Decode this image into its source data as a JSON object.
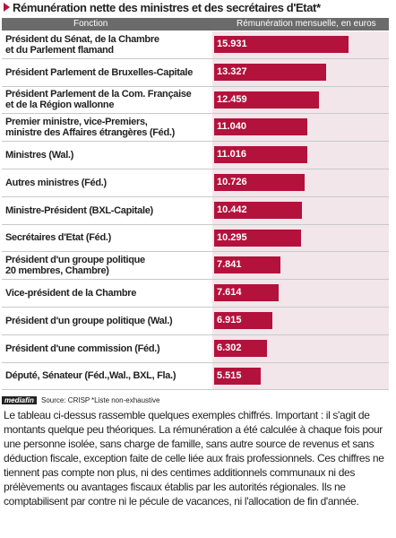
{
  "chart_data": {
    "type": "bar",
    "orientation": "horizontal",
    "title": "Rémunération nette des ministres et des secrétaires d'Etat*",
    "column_labels": [
      "Fonction",
      "Rémunération mensuelle, en euros"
    ],
    "categories": [
      "Président du Sénat, de la Chambre\net du Parlement flamand",
      "Président Parlement de Bruxelles-Capitale",
      "Président  Parlement de la Com. Française\net de la Région wallonne",
      "Premier ministre, vice-Premiers,\nministre des Affaires étrangères (Féd.)",
      "Ministres (Wal.)",
      "Autres ministres (Féd.)",
      "Ministre-Président (BXL-Capitale)",
      "Secrétaires d'Etat (Féd.)",
      "Président d'un groupe politique\n20 membres, Chambre)",
      "Vice-président de la Chambre",
      "Président d'un groupe politique (Wal.)",
      "Président d'une commission (Féd.)",
      "Député, Sénateur (Féd.,Wal., BXL, Fla.)"
    ],
    "values": [
      15931,
      13327,
      12459,
      11040,
      11016,
      10726,
      10442,
      10295,
      7841,
      7614,
      6915,
      6302,
      5515
    ],
    "value_labels": [
      "15.931",
      "13.327",
      "12.459",
      "11.040",
      "11.016",
      "10.726",
      "10.442",
      "10.295",
      "7.841",
      "7.614",
      "6.915",
      "6.302",
      "5.515"
    ],
    "color": "#b3123c",
    "logo": "mediafin",
    "source": "Source: CRISP",
    "note": "*Liste non-exhaustive",
    "paragraph": "Le tableau ci-dessus rassemble quelques exemples chiffrés. Important : il s'agit de montants quelque peu théoriques. La rémunération a été calculée à chaque fois pour une personne isolée, sans charge de famille, sans autre source de revenus et sans déduction fiscale, exception faite de celle liée aux frais professionnels. Ces chiffres ne tiennent pas compte non plus, ni des centimes additionnels communaux ni des prélèvements ou avantages fiscaux établis par les autorités régionales. Ils ne comptabilisent par contre ni le pécule de vacances, ni l'allocation de fin d'année."
  }
}
